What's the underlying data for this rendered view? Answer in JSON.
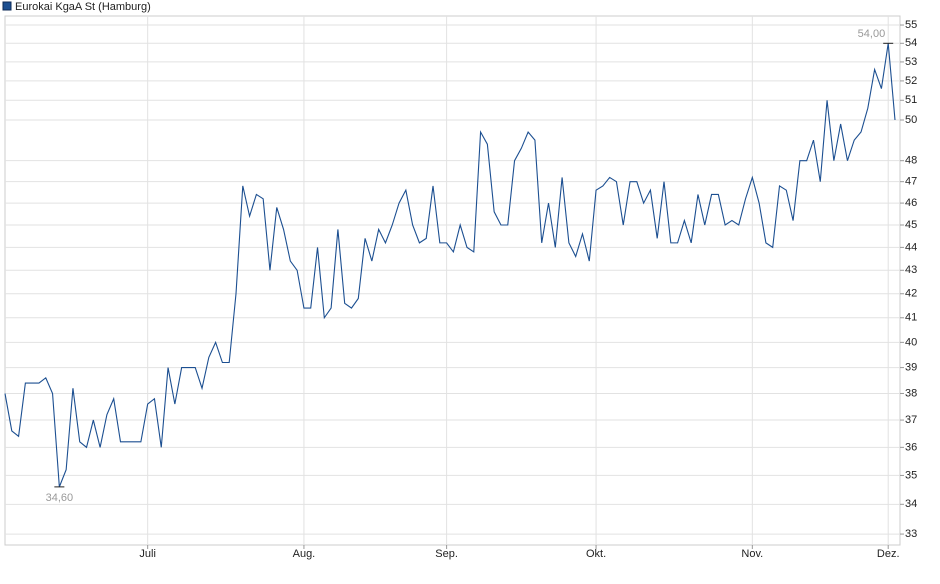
{
  "chart_data": {
    "type": "line",
    "legend_title": "Eurokai KgaA St (Hamburg)",
    "log_scale": true,
    "grid": true,
    "legend": "top-left",
    "x": [
      0,
      1,
      2,
      3,
      4,
      5,
      6,
      7,
      8,
      9,
      10,
      11,
      12,
      13,
      14,
      15,
      16,
      17,
      18,
      19,
      20,
      21,
      22,
      23,
      24,
      25,
      26,
      27,
      28,
      29,
      30,
      31,
      32,
      33,
      34,
      35,
      36,
      37,
      38,
      39,
      40,
      41,
      42,
      43,
      44,
      45,
      46,
      47,
      48,
      49,
      50,
      51,
      52,
      53,
      54,
      55,
      56,
      57,
      58,
      59,
      60,
      61,
      62,
      63,
      64,
      65,
      66,
      67,
      68,
      69,
      70,
      71,
      72,
      73,
      74,
      75,
      76,
      77,
      78,
      79,
      80,
      81,
      82,
      83,
      84,
      85,
      86,
      87,
      88,
      89,
      90,
      91,
      92,
      93,
      94,
      95,
      96,
      97,
      98,
      99,
      100,
      101,
      102,
      103,
      104,
      105,
      106,
      107,
      108,
      109,
      110,
      111,
      112,
      113,
      114,
      115,
      116,
      117,
      118,
      119,
      120,
      121,
      122,
      123,
      124,
      125,
      126,
      127,
      128,
      129,
      130,
      131
    ],
    "series": [
      {
        "name": "Eurokai KgaA St (Hamburg)",
        "color": "#1c4f91",
        "values": [
          38,
          36.6,
          36.4,
          38.4,
          38.4,
          38.4,
          38.6,
          38,
          34.6,
          35.2,
          38.2,
          36.2,
          36,
          37,
          36,
          37.2,
          37.8,
          36.2,
          36.2,
          36.2,
          36.2,
          37.6,
          37.8,
          36,
          39,
          37.6,
          39,
          39,
          39,
          38.2,
          39.4,
          40,
          39.2,
          39.2,
          42,
          46.8,
          45.4,
          46.4,
          46.2,
          43,
          45.8,
          44.8,
          43.4,
          43,
          41.4,
          41.4,
          44,
          41,
          41.4,
          44.8,
          41.6,
          41.4,
          41.8,
          44.4,
          43.4,
          44.8,
          44.2,
          45,
          46,
          46.6,
          45,
          44.2,
          44.4,
          46.8,
          44.2,
          44.2,
          43.8,
          45,
          44,
          43.8,
          49.4,
          48.8,
          45.6,
          45,
          45,
          48,
          48.6,
          49.4,
          49,
          44.2,
          46,
          44,
          47.2,
          44.2,
          43.6,
          44.6,
          43.4,
          46.6,
          46.8,
          47.2,
          47,
          45,
          47,
          47,
          46,
          46.6,
          44.4,
          47,
          44.2,
          44.2,
          45.2,
          44.2,
          46.4,
          45,
          46.4,
          46.4,
          45,
          45.2,
          45,
          46.2,
          47.2,
          46,
          44.2,
          44,
          46.8,
          46.6,
          45.2,
          48,
          48,
          49,
          47,
          51,
          48,
          49.8,
          48,
          49,
          49.4,
          50.6,
          52.6,
          51.6,
          54,
          50
        ]
      }
    ],
    "annotations": [
      {
        "text": "54,00",
        "x": 130,
        "y": 54
      },
      {
        "text": "34,60",
        "x": 8,
        "y": 34.6
      }
    ],
    "xlim": [
      0,
      131
    ],
    "xticks": [
      {
        "value": 21,
        "label": "Juli"
      },
      {
        "value": 44,
        "label": "Aug."
      },
      {
        "value": 65,
        "label": "Sep."
      },
      {
        "value": 87,
        "label": "Okt."
      },
      {
        "value": 110,
        "label": "Nov."
      },
      {
        "value": 130,
        "label": "Dez."
      }
    ],
    "ylim": [
      32.64,
      55.5
    ],
    "yticks": [
      33,
      34,
      35,
      36,
      37,
      38,
      39,
      40,
      41,
      42,
      43,
      44,
      45,
      46,
      47,
      48,
      50,
      51,
      52,
      53,
      54,
      55
    ]
  }
}
